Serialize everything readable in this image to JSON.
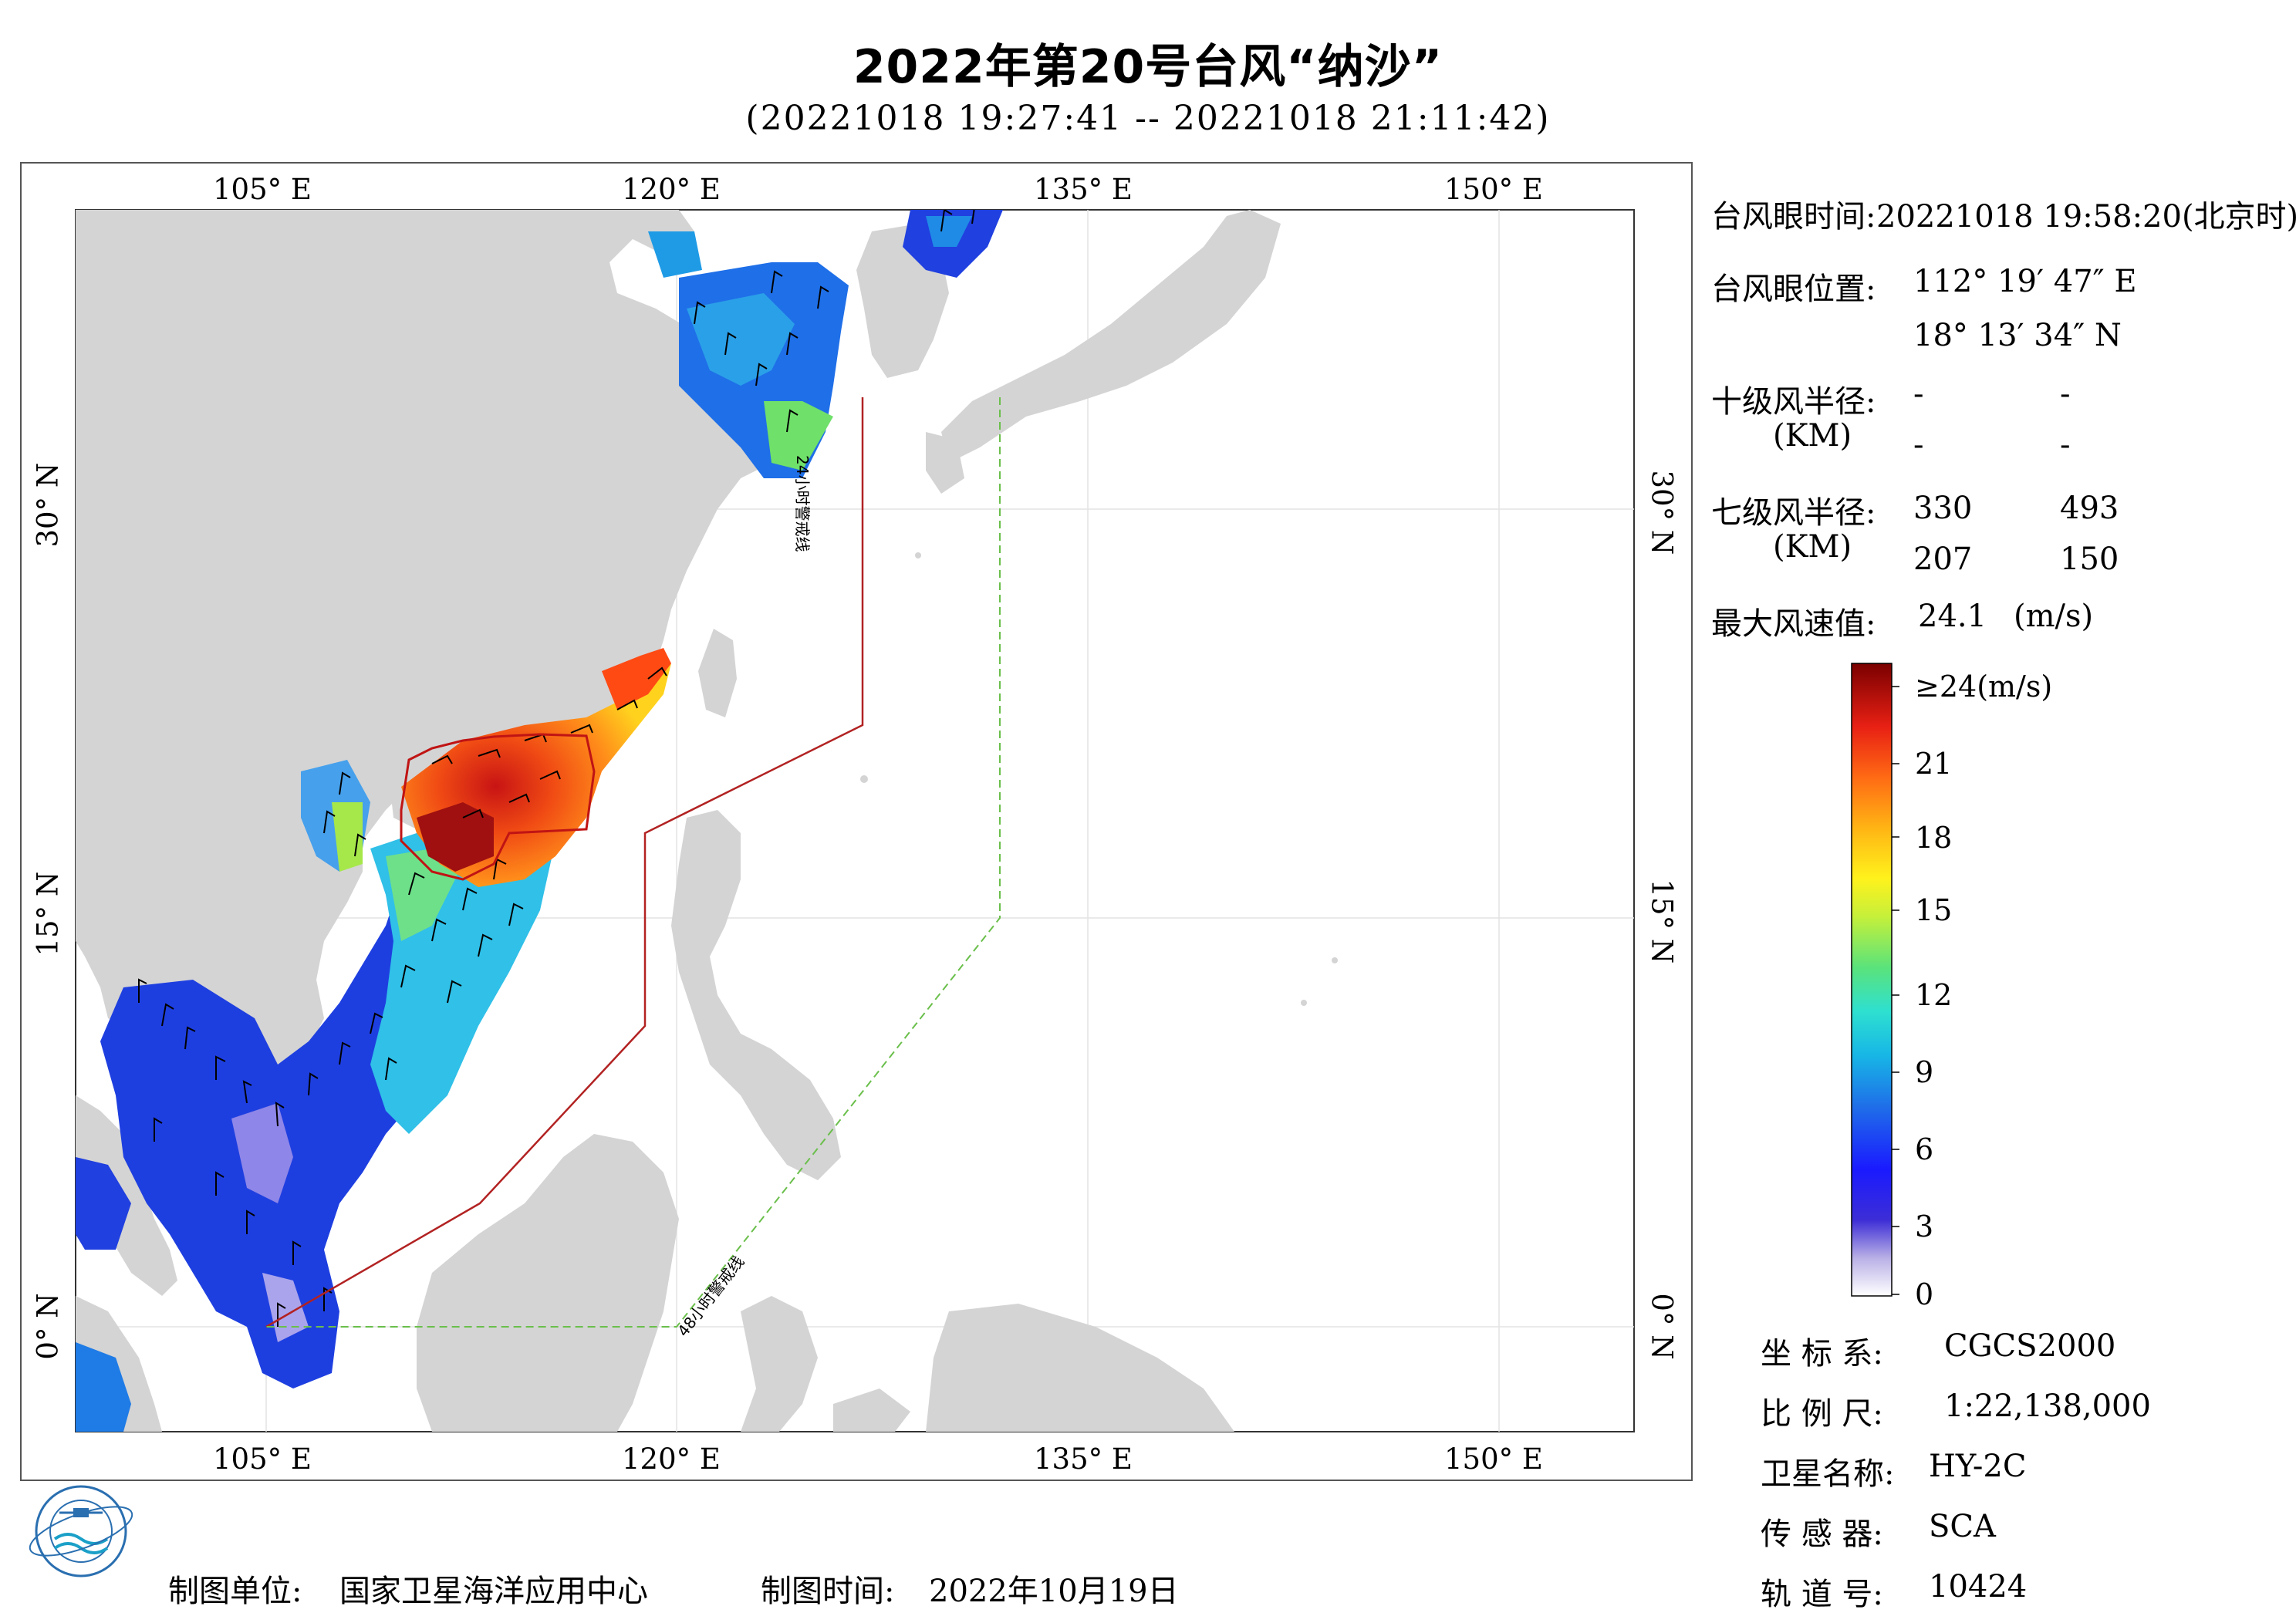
{
  "header": {
    "title": "2022年第20号台风“纳沙”",
    "time_range": "(20221018 19:27:41 -- 20221018 21:11:42)"
  },
  "map": {
    "lon_ticks_top": [
      "105° E",
      "120° E",
      "135° E",
      "150° E"
    ],
    "lon_ticks_bottom": [
      "105° E",
      "120° E",
      "135° E",
      "150° E"
    ],
    "lat_ticks_left": [
      "30° N",
      "15° N",
      "0° N"
    ],
    "lat_ticks_right": [
      "30° N",
      "15° N",
      "0° N"
    ],
    "warning_line_24h_label": "24小时警戒线",
    "warning_line_48h_label": "48小时警戒线",
    "colors": {
      "land": "#d4d4d4",
      "warning_24h": "#b22222",
      "warning_48h": "#6abf4b"
    }
  },
  "info_panel": {
    "eye_time_label": "台风眼时间:",
    "eye_time_value": "20221018 19:58:20(北京时)",
    "eye_pos_label": "台风眼位置:",
    "eye_lon": "112° 19′ 47″ E",
    "eye_lat": "18° 13′ 34″ N",
    "r10_label": "十级风半径:",
    "r10_unit": "(KM)",
    "r10_values": [
      "-",
      "-",
      "-",
      "-"
    ],
    "r7_label": "七级风半径:",
    "r7_unit": "(KM)",
    "r7_values": [
      "330",
      "493",
      "207",
      "150"
    ],
    "max_wind_label": "最大风速值:",
    "max_wind_value": "24.1",
    "max_wind_unit": "(m/s)"
  },
  "colorbar": {
    "labels": [
      "≥24(m/s)",
      "21",
      "18",
      "15",
      "12",
      "9",
      "6",
      "3",
      "0"
    ]
  },
  "meta_panel": {
    "crs_label": "坐 标 系:",
    "crs_value": "CGCS2000",
    "scale_label": "比 例 尺:",
    "scale_value": "1:22,138,000",
    "satellite_label": "卫星名称:",
    "satellite_value": "HY-2C",
    "sensor_label": "传 感 器:",
    "sensor_value": "SCA",
    "orbit_label": "轨 道 号:",
    "orbit_value": "10424"
  },
  "footer": {
    "org_label": "制图单位:",
    "org_value": "国家卫星海洋应用中心",
    "date_label": "制图时间:",
    "date_value": "2022年10月19日"
  }
}
